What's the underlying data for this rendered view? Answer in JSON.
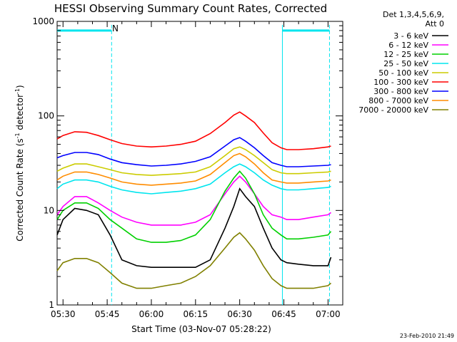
{
  "chart_data": {
    "type": "line",
    "title": "HESSI Observing Summary Count Rates, Corrected",
    "xlabel": "Start Time (03-Nov-07 05:28:22)",
    "ylabel_main": "Corrected Count Rate (s",
    "ylabel_sup1": "-1",
    "ylabel_mid": " detector",
    "ylabel_sup2": "-1",
    "ylabel_end": ")",
    "yscale": "log",
    "ylim": [
      1,
      1000
    ],
    "xlim_min": [
      328,
      425
    ],
    "ytick_labels": [
      "1",
      "10",
      "100",
      "1000"
    ],
    "xtick_labels": [
      "05:30",
      "05:45",
      "06:00",
      "06:15",
      "06:30",
      "06:45",
      "07:00"
    ],
    "xtick_minutes": [
      330,
      345,
      360,
      375,
      390,
      405,
      420
    ],
    "legend_header": [
      "Det 1,3,4,5,6,9,",
      "Att 0"
    ],
    "timestamp": "23-Feb-2010 21:49",
    "flag_label": "N",
    "night_intervals_min": [
      [
        328,
        346.5
      ],
      [
        404.5,
        420.5
      ]
    ],
    "flag_level": 800,
    "series": [
      {
        "name": "3 - 6 keV",
        "color": "#000000",
        "x": [
          328,
          330,
          334,
          338,
          342,
          346,
          350,
          355,
          360,
          365,
          370,
          375,
          380,
          385,
          388,
          390,
          392,
          395,
          398,
          401,
          404,
          406,
          410,
          415,
          420,
          421
        ],
        "y": [
          5.5,
          8,
          10.5,
          10,
          9,
          5.5,
          3,
          2.6,
          2.5,
          2.5,
          2.5,
          2.5,
          3,
          6.5,
          11,
          17,
          14,
          11,
          6.5,
          4,
          3,
          2.8,
          2.7,
          2.6,
          2.6,
          3.2
        ]
      },
      {
        "name": "6 - 12 keV",
        "color": "#ff00ff",
        "x": [
          328,
          330,
          334,
          338,
          342,
          346,
          350,
          355,
          360,
          365,
          370,
          375,
          380,
          385,
          388,
          390,
          392,
          395,
          398,
          401,
          404,
          406,
          410,
          415,
          420,
          421
        ],
        "y": [
          9,
          11,
          14,
          14,
          12,
          10,
          8.5,
          7.5,
          7,
          7,
          7,
          7.5,
          9,
          15,
          20,
          23,
          20,
          15,
          11,
          9,
          8.5,
          8,
          8,
          8.5,
          9,
          9.5
        ]
      },
      {
        "name": "12 - 25 keV",
        "color": "#00d000",
        "x": [
          328,
          330,
          334,
          338,
          342,
          346,
          350,
          355,
          360,
          365,
          370,
          375,
          380,
          385,
          388,
          390,
          392,
          395,
          398,
          401,
          404,
          406,
          410,
          415,
          420,
          421
        ],
        "y": [
          8,
          10,
          12,
          12,
          10.5,
          8,
          6.5,
          5,
          4.6,
          4.6,
          4.8,
          5.5,
          8,
          16,
          22,
          26,
          22,
          15,
          9,
          6.5,
          5.5,
          5,
          5,
          5.2,
          5.5,
          6
        ]
      },
      {
        "name": "25 - 50 keV",
        "color": "#00e5ee",
        "x": [
          328,
          330,
          334,
          338,
          342,
          346,
          350,
          355,
          360,
          365,
          370,
          375,
          380,
          385,
          388,
          390,
          392,
          395,
          398,
          401,
          404,
          406,
          410,
          415,
          420,
          421
        ],
        "y": [
          17,
          19,
          21,
          21,
          20,
          18,
          16.5,
          15.5,
          15,
          15.5,
          16,
          17,
          19,
          25,
          29,
          31,
          29,
          25,
          21,
          18.5,
          17,
          16.5,
          16.5,
          17,
          17.5,
          18
        ]
      },
      {
        "name": "50 - 100 keV",
        "color": "#cccc00",
        "x": [
          328,
          330,
          334,
          338,
          342,
          346,
          350,
          355,
          360,
          365,
          370,
          375,
          380,
          385,
          388,
          390,
          392,
          395,
          398,
          401,
          404,
          406,
          410,
          415,
          420,
          421
        ],
        "y": [
          26,
          28,
          31,
          31,
          29,
          27,
          25,
          24,
          23.5,
          24,
          24.5,
          25.5,
          29,
          38,
          45,
          47,
          44,
          38,
          32,
          27,
          25,
          24.5,
          24.5,
          25,
          25.5,
          26
        ]
      },
      {
        "name": "100 - 300 keV",
        "color": "#ff0000",
        "x": [
          328,
          330,
          334,
          338,
          342,
          346,
          350,
          355,
          360,
          365,
          370,
          375,
          380,
          385,
          388,
          390,
          392,
          395,
          398,
          401,
          404,
          406,
          410,
          415,
          420,
          421
        ],
        "y": [
          57,
          62,
          68,
          67,
          62,
          56,
          51,
          48,
          47,
          48,
          50,
          54,
          65,
          85,
          102,
          110,
          100,
          85,
          66,
          52,
          46,
          44,
          44,
          45,
          47,
          48
        ]
      },
      {
        "name": "300 - 800 keV",
        "color": "#0000ff",
        "x": [
          328,
          330,
          334,
          338,
          342,
          346,
          350,
          355,
          360,
          365,
          370,
          375,
          380,
          385,
          388,
          390,
          392,
          395,
          398,
          401,
          404,
          406,
          410,
          415,
          420,
          421
        ],
        "y": [
          36,
          38,
          41,
          41,
          39,
          35,
          32,
          30.5,
          29.5,
          30,
          31,
          33,
          37,
          48,
          56,
          59,
          54,
          46,
          38,
          32,
          30,
          29,
          29,
          29.5,
          30,
          30.5
        ]
      },
      {
        "name": "800 - 7000 keV",
        "color": "#ff8c00",
        "x": [
          328,
          330,
          334,
          338,
          342,
          346,
          350,
          355,
          360,
          365,
          370,
          375,
          380,
          385,
          388,
          390,
          392,
          395,
          398,
          401,
          404,
          406,
          410,
          415,
          420,
          421
        ],
        "y": [
          21,
          23,
          25.5,
          25.5,
          24,
          22,
          20,
          19,
          18.5,
          19,
          19.5,
          20.5,
          24,
          32,
          38,
          40,
          37,
          31,
          25,
          21,
          20,
          19.5,
          19.5,
          20,
          20.5,
          21
        ]
      },
      {
        "name": "7000 - 20000 keV",
        "color": "#808000",
        "x": [
          328,
          330,
          334,
          338,
          342,
          346,
          350,
          355,
          360,
          365,
          370,
          375,
          380,
          385,
          388,
          390,
          392,
          395,
          398,
          401,
          404,
          406,
          410,
          415,
          420,
          421
        ],
        "y": [
          2.3,
          2.8,
          3.1,
          3.1,
          2.8,
          2.2,
          1.7,
          1.5,
          1.5,
          1.6,
          1.7,
          2,
          2.6,
          4,
          5.2,
          5.8,
          5,
          3.8,
          2.6,
          1.9,
          1.6,
          1.5,
          1.5,
          1.5,
          1.6,
          1.7
        ]
      }
    ]
  }
}
